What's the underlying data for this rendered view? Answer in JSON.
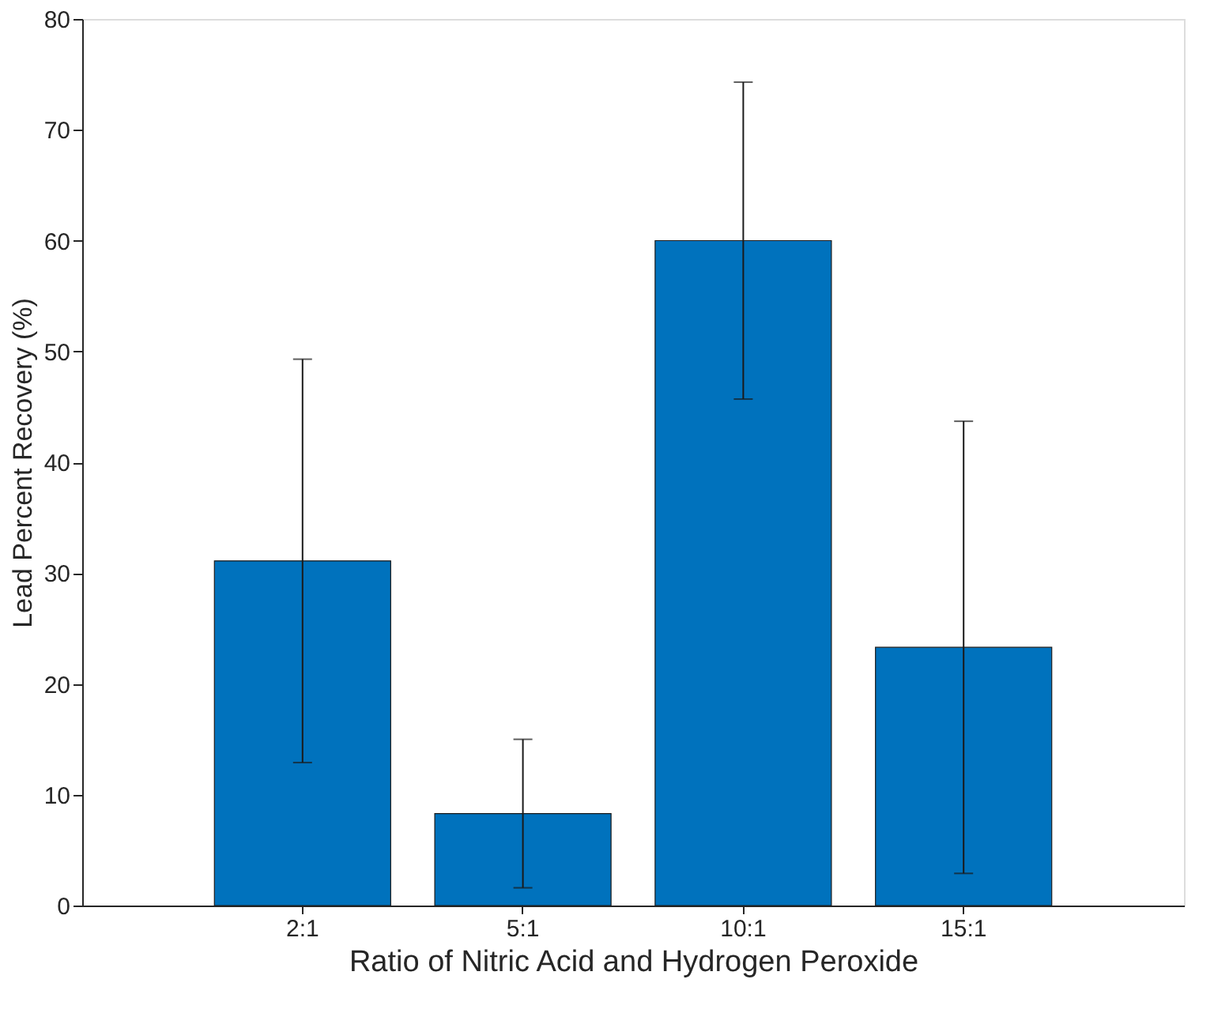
{
  "chart_data": {
    "type": "bar",
    "xlabel": "Ratio of Nitric Acid and Hydrogen Peroxide",
    "ylabel": "Lead Percent Recovery (%)",
    "categories": [
      "2:1",
      "5:1",
      "10:1",
      "15:1"
    ],
    "values": [
      31.1,
      8.3,
      60.0,
      23.3
    ],
    "errors": [
      18.2,
      6.7,
      14.3,
      20.4
    ],
    "color": "#0072bd",
    "ylim": [
      0,
      80
    ],
    "yticks": [
      0,
      10,
      20,
      30,
      40,
      50,
      60,
      70,
      80
    ],
    "grid": false
  }
}
